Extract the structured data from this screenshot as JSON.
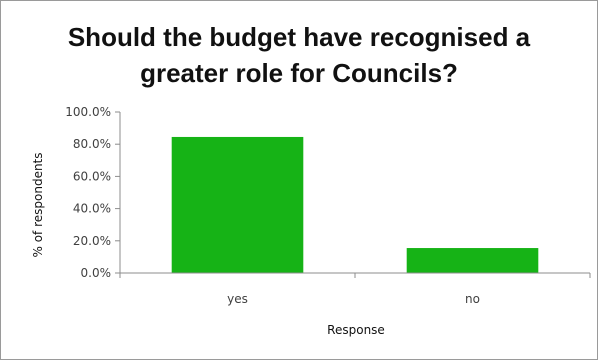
{
  "chart_data": {
    "type": "bar",
    "title_lines": [
      "Should the budget have recognised a",
      "greater role for Councils?"
    ],
    "xlabel": "Response",
    "ylabel": "% of respondents",
    "categories": [
      "yes",
      "no"
    ],
    "values": [
      84.5,
      15.5
    ],
    "ylim": [
      0,
      100
    ],
    "yticks": [
      0,
      20,
      40,
      60,
      80,
      100
    ],
    "ytick_labels": [
      "0.0%",
      "20.0%",
      "40.0%",
      "60.0%",
      "80.0%",
      "100.0%"
    ],
    "bar_color": "#16b316",
    "grid": false,
    "legend": "none"
  }
}
